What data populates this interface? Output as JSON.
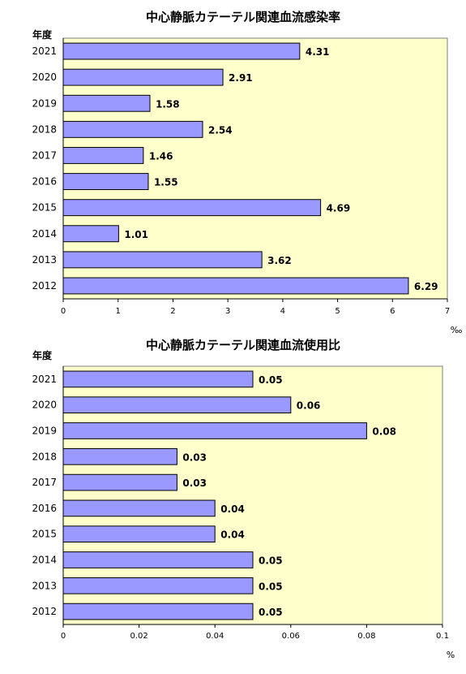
{
  "chart_data": [
    {
      "type": "bar",
      "orientation": "horizontal",
      "title": "中心静脈カテーテル関連血流感染率",
      "ylabel": "年度",
      "xlabel": "‰",
      "categories": [
        "2021",
        "2020",
        "2019",
        "2018",
        "2017",
        "2016",
        "2015",
        "2014",
        "2013",
        "2012"
      ],
      "values": [
        4.31,
        2.91,
        1.58,
        2.54,
        1.46,
        1.55,
        4.69,
        1.01,
        3.62,
        6.29
      ],
      "value_labels": [
        "4.31",
        "2.91",
        "1.58",
        "2.54",
        "1.46",
        "1.55",
        "4.69",
        "1.01",
        "3.62",
        "6.29"
      ],
      "xlim": [
        0,
        7
      ],
      "xticks": [
        "0",
        "1",
        "2",
        "3",
        "4",
        "5",
        "6",
        "7"
      ],
      "xtick_values": [
        0,
        1,
        2,
        3,
        4,
        5,
        6,
        7
      ],
      "grid": false,
      "legend": "none",
      "colors": {
        "bar_fill": "#9999ff",
        "bar_stroke": "#000000",
        "plot_bg": "#ffffcc"
      }
    },
    {
      "type": "bar",
      "orientation": "horizontal",
      "title": "中心静脈カテーテル関連血流使用比",
      "ylabel": "年度",
      "xlabel": "%",
      "categories": [
        "2021",
        "2020",
        "2019",
        "2018",
        "2017",
        "2016",
        "2015",
        "2014",
        "2013",
        "2012"
      ],
      "values": [
        0.05,
        0.06,
        0.08,
        0.03,
        0.03,
        0.04,
        0.04,
        0.05,
        0.05,
        0.05
      ],
      "value_labels": [
        "0.05",
        "0.06",
        "0.08",
        "0.03",
        "0.03",
        "0.04",
        "0.04",
        "0.05",
        "0.05",
        "0.05"
      ],
      "xlim": [
        0,
        0.1
      ],
      "xticks": [
        "0",
        "0.02",
        "0.04",
        "0.06",
        "0.08",
        "0.1"
      ],
      "xtick_values": [
        0,
        0.02,
        0.04,
        0.06,
        0.08,
        0.1
      ],
      "grid": false,
      "legend": "none",
      "colors": {
        "bar_fill": "#9999ff",
        "bar_stroke": "#000000",
        "plot_bg": "#ffffcc"
      }
    }
  ]
}
